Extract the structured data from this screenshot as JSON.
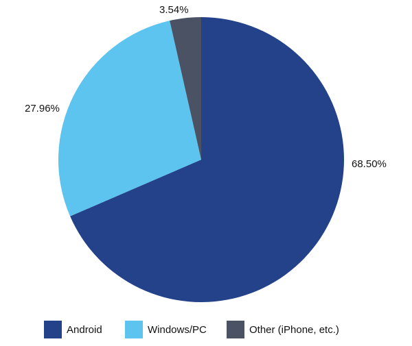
{
  "chart_data": {
    "type": "pie",
    "title": "",
    "legend_position": "bottom",
    "start": "top",
    "direction": "clockwise",
    "series": [
      {
        "name": "Android",
        "value": 68.5,
        "label": "68.50%",
        "color": "#23428a"
      },
      {
        "name": "Windows/PC",
        "value": 27.96,
        "label": "27.96%",
        "color": "#5cc4ef"
      },
      {
        "name": "Other (iPhone, etc.)",
        "value": 3.54,
        "label": "3.54%",
        "color": "#4a5263"
      }
    ]
  }
}
